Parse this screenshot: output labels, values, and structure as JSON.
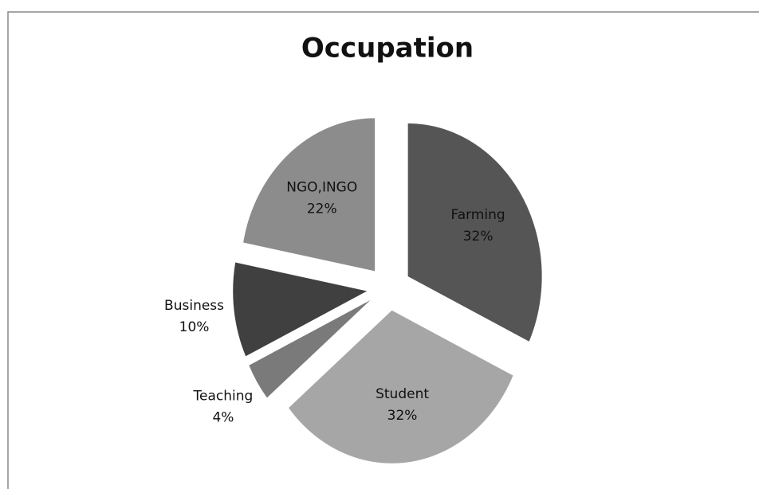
{
  "chart_data": {
    "type": "pie",
    "title": "Occupation",
    "categories": [
      "Farming",
      "Student",
      "Teaching",
      "Business",
      "NGO,INGO"
    ],
    "values": [
      32,
      32,
      4,
      10,
      22
    ],
    "value_labels": [
      "32%",
      "32%",
      "4%",
      "10%",
      "22%"
    ],
    "colors": [
      "#555555",
      "#a6a6a6",
      "#7a7a7a",
      "#404040",
      "#8c8c8c"
    ]
  }
}
